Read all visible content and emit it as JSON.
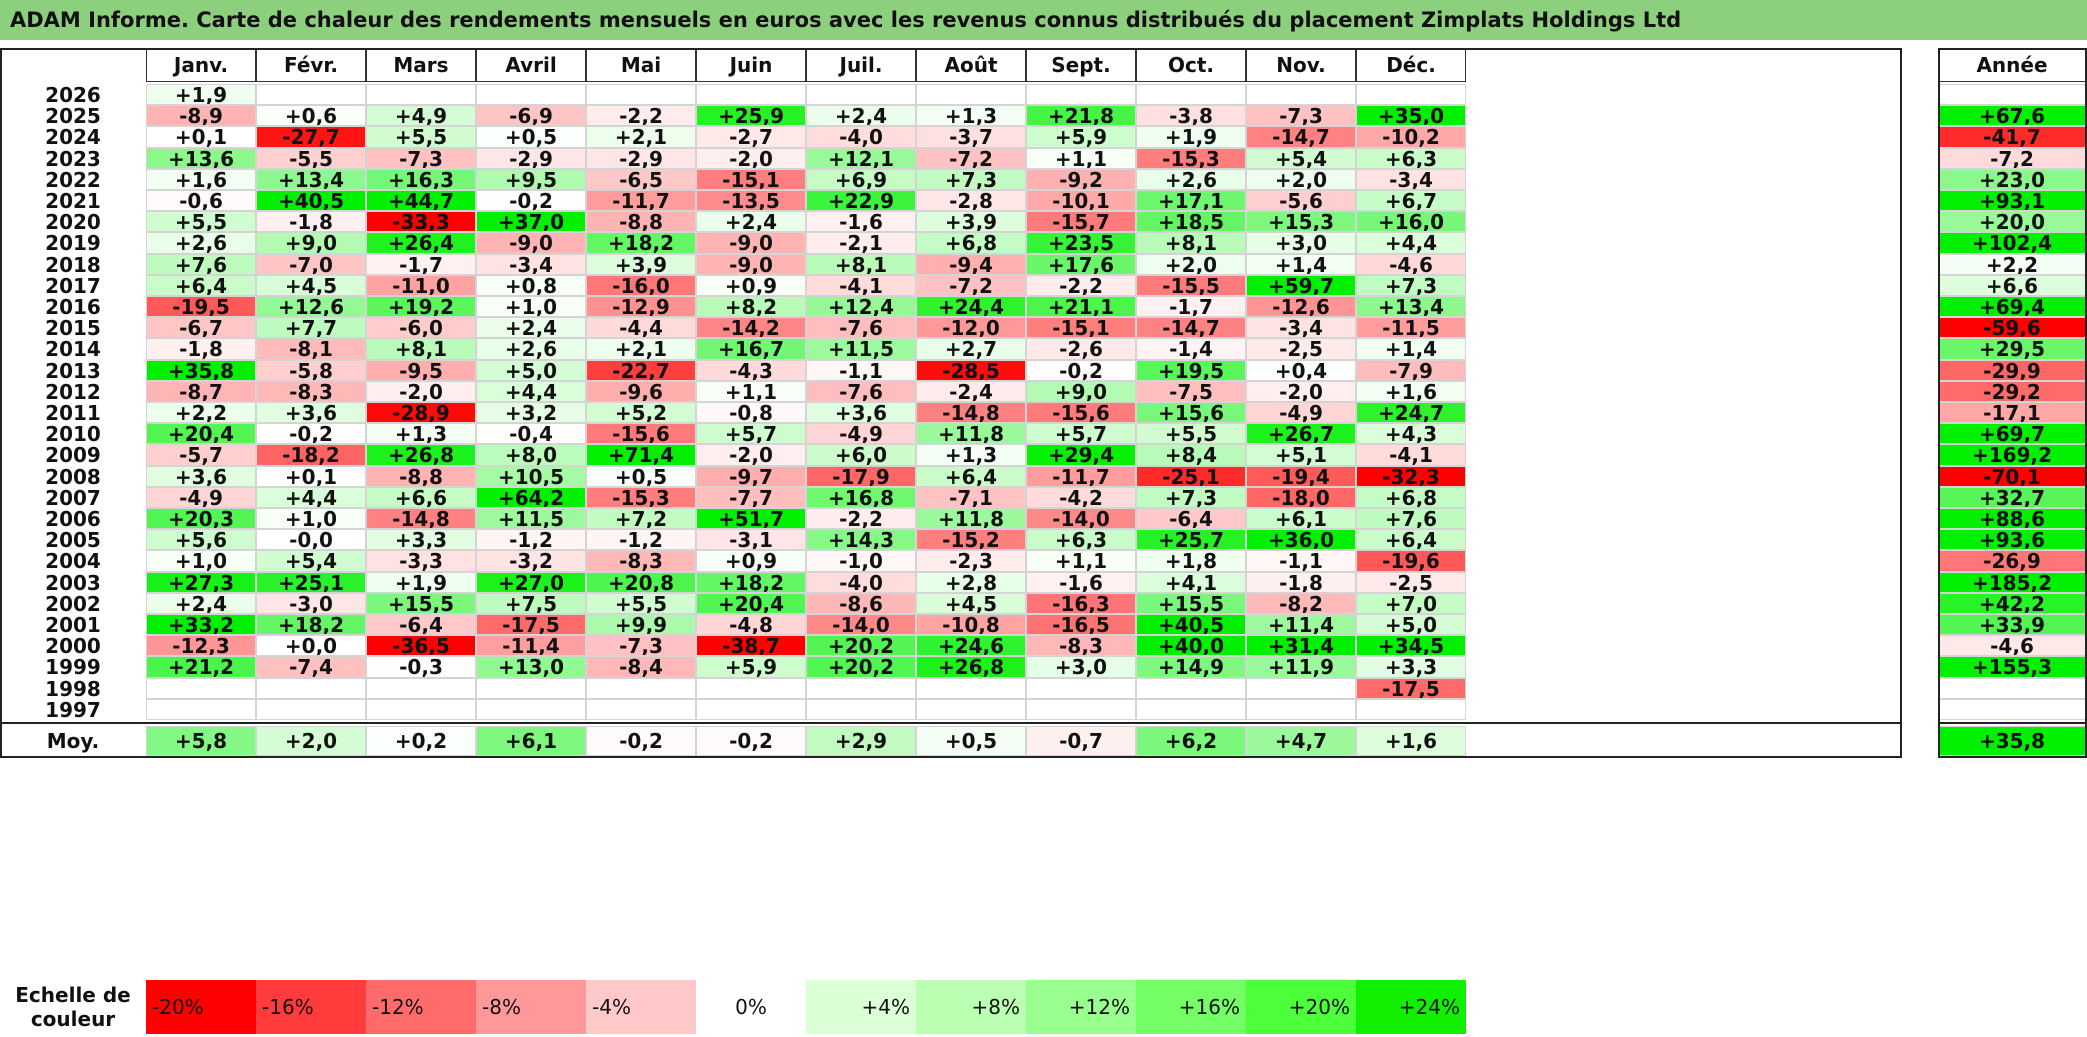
{
  "title": "ADAM Informe. Carte de chaleur des rendements mensuels en euros avec les revenus connus distribués du placement Zimplats Holdings Ltd",
  "months": [
    "Janv.",
    "Févr.",
    "Mars",
    "Avril",
    "Mai",
    "Juin",
    "Juil.",
    "Août",
    "Sept.",
    "Oct.",
    "Nov.",
    "Déc."
  ],
  "annual_header": "Année",
  "average_label": "Moy.",
  "scale_label": "Echelle de couleur",
  "scale_steps": [
    "-20%",
    "-16%",
    "-12%",
    "-8%",
    "-4%",
    "0%",
    "+4%",
    "+8%",
    "+12%",
    "+16%",
    "+20%",
    "+24%"
  ],
  "colors": {
    "title_bg": "#8cd07e",
    "scale": [
      "#ff0000",
      "#ff3b3b",
      "#ff6a6a",
      "#ff9898",
      "#ffc9c9",
      "#ffffff",
      "#dcffd8",
      "#bbffb3",
      "#99ff8e",
      "#73ff65",
      "#4dff3b",
      "#11f000"
    ]
  },
  "chart_data": {
    "type": "heatmap",
    "title": "ADAM Informe. Carte de chaleur des rendements mensuels en euros avec les revenus connus distribués du placement Zimplats Holdings Ltd",
    "x": [
      "Janv.",
      "Févr.",
      "Mars",
      "Avril",
      "Mai",
      "Juin",
      "Juil.",
      "Août",
      "Sept.",
      "Oct.",
      "Nov.",
      "Déc."
    ],
    "rows": [
      {
        "year": "2026",
        "values": [
          "+1,9",
          "",
          "",
          "",
          "",
          "",
          "",
          "",
          "",
          "",
          "",
          ""
        ],
        "annual": ""
      },
      {
        "year": "2025",
        "values": [
          "-8,9",
          "+0,6",
          "+4,9",
          "-6,9",
          "-2,2",
          "+25,9",
          "+2,4",
          "+1,3",
          "+21,8",
          "-3,8",
          "-7,3",
          "+35,0"
        ],
        "annual": "+67,6"
      },
      {
        "year": "2024",
        "values": [
          "+0,1",
          "-27,7",
          "+5,5",
          "+0,5",
          "+2,1",
          "-2,7",
          "-4,0",
          "-3,7",
          "+5,9",
          "+1,9",
          "-14,7",
          "-10,2"
        ],
        "annual": "-41,7"
      },
      {
        "year": "2023",
        "values": [
          "+13,6",
          "-5,5",
          "-7,3",
          "-2,9",
          "-2,9",
          "-2,0",
          "+12,1",
          "-7,2",
          "+1,1",
          "-15,3",
          "+5,4",
          "+6,3"
        ],
        "annual": "-7,2"
      },
      {
        "year": "2022",
        "values": [
          "+1,6",
          "+13,4",
          "+16,3",
          "+9,5",
          "-6,5",
          "-15,1",
          "+6,9",
          "+7,3",
          "-9,2",
          "+2,6",
          "+2,0",
          "-3,4"
        ],
        "annual": "+23,0"
      },
      {
        "year": "2021",
        "values": [
          "-0,6",
          "+40,5",
          "+44,7",
          "-0,2",
          "-11,7",
          "-13,5",
          "+22,9",
          "-2,8",
          "-10,1",
          "+17,1",
          "-5,6",
          "+6,7"
        ],
        "annual": "+93,1"
      },
      {
        "year": "2020",
        "values": [
          "+5,5",
          "-1,8",
          "-33,3",
          "+37,0",
          "-8,8",
          "+2,4",
          "-1,6",
          "+3,9",
          "-15,7",
          "+18,5",
          "+15,3",
          "+16,0"
        ],
        "annual": "+20,0"
      },
      {
        "year": "2019",
        "values": [
          "+2,6",
          "+9,0",
          "+26,4",
          "-9,0",
          "+18,2",
          "-9,0",
          "-2,1",
          "+6,8",
          "+23,5",
          "+8,1",
          "+3,0",
          "+4,4"
        ],
        "annual": "+102,4"
      },
      {
        "year": "2018",
        "values": [
          "+7,6",
          "-7,0",
          "-1,7",
          "-3,4",
          "+3,9",
          "-9,0",
          "+8,1",
          "-9,4",
          "+17,6",
          "+2,0",
          "+1,4",
          "-4,6"
        ],
        "annual": "+2,2"
      },
      {
        "year": "2017",
        "values": [
          "+6,4",
          "+4,5",
          "-11,0",
          "+0,8",
          "-16,0",
          "+0,9",
          "-4,1",
          "-7,2",
          "-2,2",
          "-15,5",
          "+59,7",
          "+7,3"
        ],
        "annual": "+6,6"
      },
      {
        "year": "2016",
        "values": [
          "-19,5",
          "+12,6",
          "+19,2",
          "+1,0",
          "-12,9",
          "+8,2",
          "+12,4",
          "+24,4",
          "+21,1",
          "-1,7",
          "-12,6",
          "+13,4"
        ],
        "annual": "+69,4"
      },
      {
        "year": "2015",
        "values": [
          "-6,7",
          "+7,7",
          "-6,0",
          "+2,4",
          "-4,4",
          "-14,2",
          "-7,6",
          "-12,0",
          "-15,1",
          "-14,7",
          "-3,4",
          "-11,5"
        ],
        "annual": "-59,6"
      },
      {
        "year": "2014",
        "values": [
          "-1,8",
          "-8,1",
          "+8,1",
          "+2,6",
          "+2,1",
          "+16,7",
          "+11,5",
          "+2,7",
          "-2,6",
          "-1,4",
          "-2,5",
          "+1,4"
        ],
        "annual": "+29,5"
      },
      {
        "year": "2013",
        "values": [
          "+35,8",
          "-5,8",
          "-9,5",
          "+5,0",
          "-22,7",
          "-4,3",
          "-1,1",
          "-28,5",
          "-0,2",
          "+19,5",
          "+0,4",
          "-7,9"
        ],
        "annual": "-29,9"
      },
      {
        "year": "2012",
        "values": [
          "-8,7",
          "-8,3",
          "-2,0",
          "+4,4",
          "-9,6",
          "+1,1",
          "-7,6",
          "-2,4",
          "+9,0",
          "-7,5",
          "-2,0",
          "+1,6"
        ],
        "annual": "-29,2"
      },
      {
        "year": "2011",
        "values": [
          "+2,2",
          "+3,6",
          "-28,9",
          "+3,2",
          "+5,2",
          "-0,8",
          "+3,6",
          "-14,8",
          "-15,6",
          "+15,6",
          "-4,9",
          "+24,7"
        ],
        "annual": "-17,1"
      },
      {
        "year": "2010",
        "values": [
          "+20,4",
          "-0,2",
          "+1,3",
          "-0,4",
          "-15,6",
          "+5,7",
          "-4,9",
          "+11,8",
          "+5,7",
          "+5,5",
          "+26,7",
          "+4,3"
        ],
        "annual": "+69,7"
      },
      {
        "year": "2009",
        "values": [
          "-5,7",
          "-18,2",
          "+26,8",
          "+8,0",
          "+71,4",
          "-2,0",
          "+6,0",
          "+1,3",
          "+29,4",
          "+8,4",
          "+5,1",
          "-4,1"
        ],
        "annual": "+169,2"
      },
      {
        "year": "2008",
        "values": [
          "+3,6",
          "+0,1",
          "-8,8",
          "+10,5",
          "+0,5",
          "-9,7",
          "-17,9",
          "+6,4",
          "-11,7",
          "-25,1",
          "-19,4",
          "-32,3"
        ],
        "annual": "-70,1"
      },
      {
        "year": "2007",
        "values": [
          "-4,9",
          "+4,4",
          "+6,6",
          "+64,2",
          "-15,3",
          "-7,7",
          "+16,8",
          "-7,1",
          "-4,2",
          "+7,3",
          "-18,0",
          "+6,8"
        ],
        "annual": "+32,7"
      },
      {
        "year": "2006",
        "values": [
          "+20,3",
          "+1,0",
          "-14,8",
          "+11,5",
          "+7,2",
          "+51,7",
          "-2,2",
          "+11,8",
          "-14,0",
          "-6,4",
          "+6,1",
          "+7,6"
        ],
        "annual": "+88,6"
      },
      {
        "year": "2005",
        "values": [
          "+5,6",
          "-0,0",
          "+3,3",
          "-1,2",
          "-1,2",
          "-3,1",
          "+14,3",
          "-15,2",
          "+6,3",
          "+25,7",
          "+36,0",
          "+6,4"
        ],
        "annual": "+93,6"
      },
      {
        "year": "2004",
        "values": [
          "+1,0",
          "+5,4",
          "-3,3",
          "-3,2",
          "-8,3",
          "+0,9",
          "-1,0",
          "-2,3",
          "+1,1",
          "+1,8",
          "-1,1",
          "-19,6"
        ],
        "annual": "-26,9"
      },
      {
        "year": "2003",
        "values": [
          "+27,3",
          "+25,1",
          "+1,9",
          "+27,0",
          "+20,8",
          "+18,2",
          "-4,0",
          "+2,8",
          "-1,6",
          "+4,1",
          "-1,8",
          "-2,5"
        ],
        "annual": "+185,2"
      },
      {
        "year": "2002",
        "values": [
          "+2,4",
          "-3,0",
          "+15,5",
          "+7,5",
          "+5,5",
          "+20,4",
          "-8,6",
          "+4,5",
          "-16,3",
          "+15,5",
          "-8,2",
          "+7,0"
        ],
        "annual": "+42,2"
      },
      {
        "year": "2001",
        "values": [
          "+33,2",
          "+18,2",
          "-6,4",
          "-17,5",
          "+9,9",
          "-4,8",
          "-14,0",
          "-10,8",
          "-16,5",
          "+40,5",
          "+11,4",
          "+5,0"
        ],
        "annual": "+33,9"
      },
      {
        "year": "2000",
        "values": [
          "-12,3",
          "+0,0",
          "-36,5",
          "-11,4",
          "-7,3",
          "-38,7",
          "+20,2",
          "+24,6",
          "-8,3",
          "+40,0",
          "+31,4",
          "+34,5"
        ],
        "annual": "-4,6"
      },
      {
        "year": "1999",
        "values": [
          "+21,2",
          "-7,4",
          "-0,3",
          "+13,0",
          "-8,4",
          "+5,9",
          "+20,2",
          "+26,8",
          "+3,0",
          "+14,9",
          "+11,9",
          "+3,3"
        ],
        "annual": "+155,3"
      },
      {
        "year": "1998",
        "values": [
          "",
          "",
          "",
          "",
          "",
          "",
          "",
          "",
          "",
          "",
          "",
          "-17,5"
        ],
        "annual": ""
      },
      {
        "year": "1997",
        "values": [
          "",
          "",
          "",
          "",
          "",
          "",
          "",
          "",
          "",
          "",
          "",
          ""
        ],
        "annual": ""
      }
    ],
    "average": {
      "values": [
        "+5,8",
        "+2,0",
        "+0,2",
        "+6,1",
        "-0,2",
        "-0,2",
        "+2,9",
        "+0,5",
        "-0,7",
        "+6,2",
        "+4,7",
        "+1,6"
      ],
      "annual": "+35,8"
    }
  }
}
